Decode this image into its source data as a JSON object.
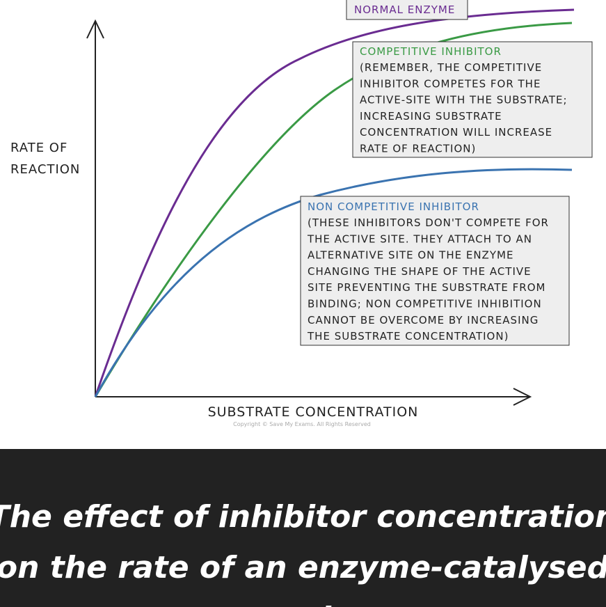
{
  "graph": {
    "y_axis_label": [
      "RATE OF",
      "REACTION"
    ],
    "x_axis_label": "SUBSTRATE CONCENTRATION",
    "copyright": "Copyright © Save My Exams. All Rights Reserved",
    "normal": {
      "title": "NORMAL ENZYME"
    },
    "competitive": {
      "title": "COMPETITIVE INHIBITOR",
      "lines": [
        "(REMEMBER, THE COMPETITIVE",
        "INHIBITOR COMPETES FOR THE",
        "ACTIVE-SITE WITH THE SUBSTRATE;",
        "INCREASING SUBSTRATE",
        "CONCENTRATION WILL INCREASE",
        "RATE OF REACTION)"
      ]
    },
    "non_competitive": {
      "title": "NON COMPETITIVE INHIBITOR",
      "lines": [
        "(THESE INHIBITORS DON'T COMPETE FOR",
        "THE ACTIVE SITE. THEY ATTACH TO AN",
        "ALTERNATIVE SITE ON THE ENZYME",
        "CHANGING THE SHAPE OF THE ACTIVE",
        "SITE PREVENTING THE SUBSTRATE FROM",
        "BINDING; NON COMPETITIVE INHIBITION",
        "CANNOT BE OVERCOME BY INCREASING",
        "THE SUBSTRATE CONCENTRATION)"
      ]
    }
  },
  "caption": [
    "The effect of inhibitor concentration",
    "on the rate of an enzyme-catalysed",
    "reaction"
  ]
}
